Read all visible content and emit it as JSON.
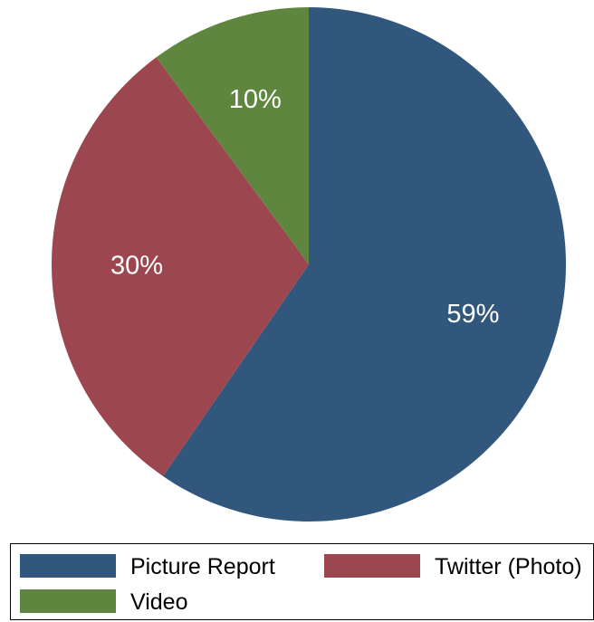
{
  "chart_data": {
    "type": "pie",
    "title": "",
    "start_angle_deg": 0,
    "direction": "clockwise",
    "slices": [
      {
        "name": "Picture Report",
        "value": 59,
        "label": "59%",
        "color": "#31587c"
      },
      {
        "name": "Twitter (Photo)",
        "value": 30,
        "label": "30%",
        "color": "#9c4650"
      },
      {
        "name": "Video",
        "value": 10,
        "label": "10%",
        "color": "#5f863f"
      }
    ],
    "legend": {
      "position": "bottom",
      "entries": [
        "Picture Report",
        "Twitter (Photo)",
        "Video"
      ]
    }
  }
}
